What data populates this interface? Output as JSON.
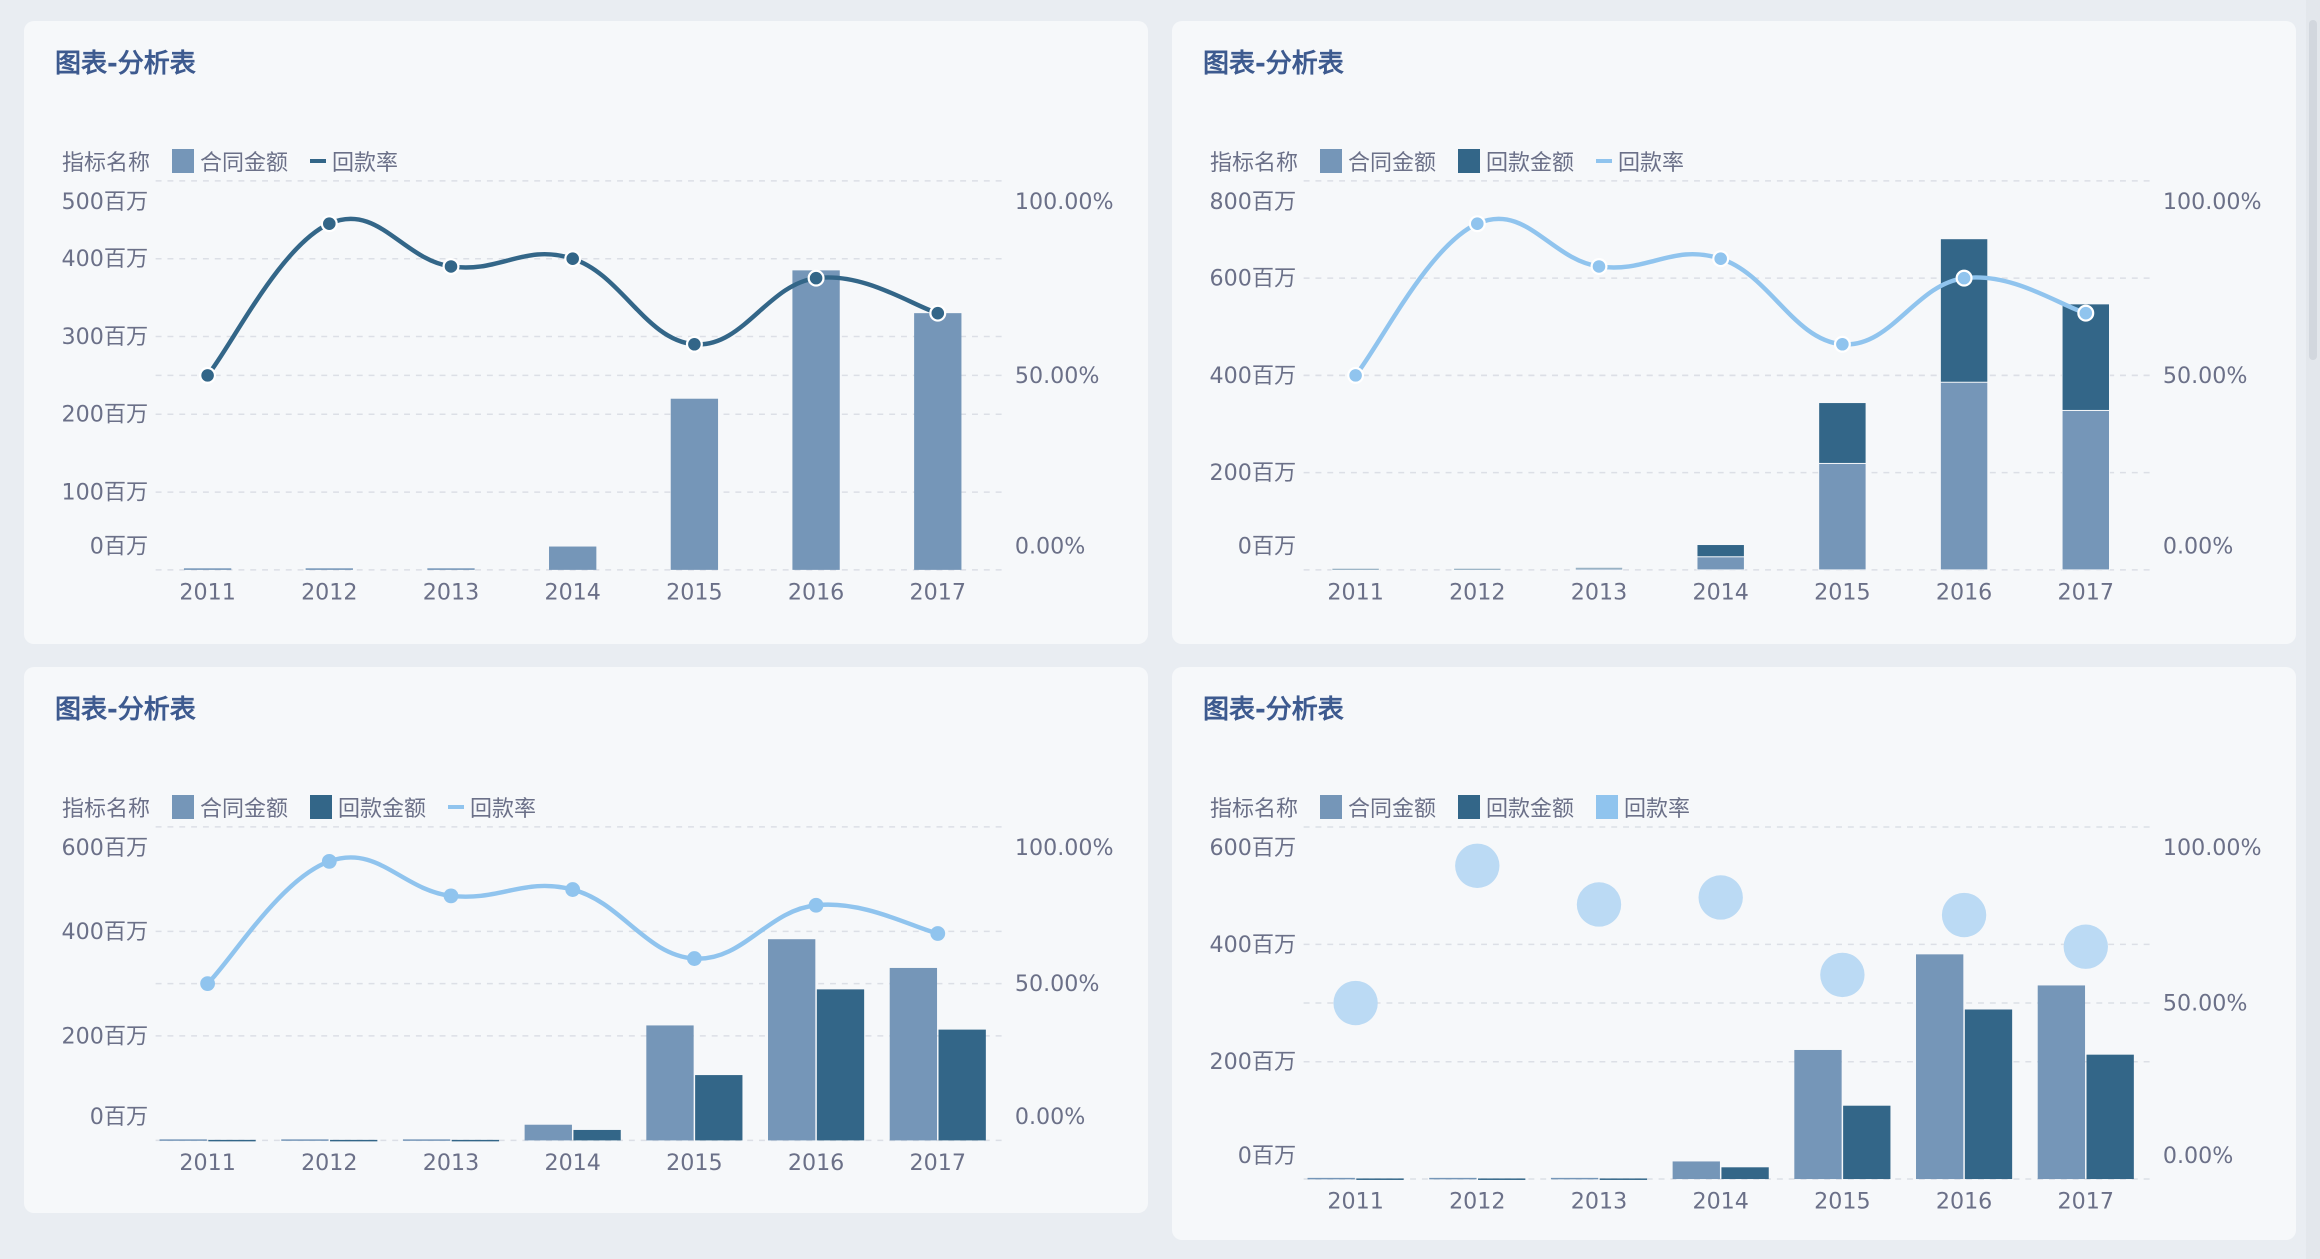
{
  "colors": {
    "contract": "#7596b8",
    "payment": "#336688",
    "rate_light": "#90c4ee",
    "bubble": "#bbdaf4",
    "text": "#6b7088",
    "grid": "#dcdfe6"
  },
  "chart_data": [
    {
      "type": "bar+line",
      "title": "图表-分析表",
      "legend_title": "指标名称",
      "legend": [
        {
          "name": "合同金额",
          "kind": "bar",
          "color": "#7596b8"
        },
        {
          "name": "回款率",
          "kind": "line",
          "color": "#336688"
        }
      ],
      "categories": [
        "2011",
        "2012",
        "2013",
        "2014",
        "2015",
        "2016",
        "2017"
      ],
      "series": [
        {
          "name": "合同金额",
          "type": "bar",
          "values": [
            2,
            2,
            2,
            30,
            220,
            385,
            330
          ]
        },
        {
          "name": "回款率",
          "type": "line",
          "axis": "right",
          "color": "#336688",
          "values": [
            50,
            89,
            78,
            80,
            58,
            75,
            66
          ]
        }
      ],
      "ylim": [
        0,
        500
      ],
      "yticks": [
        "0百万",
        "100百万",
        "200百万",
        "300百万",
        "400百万",
        "500百万"
      ],
      "y2lim": [
        0,
        100
      ],
      "y2ticks": [
        "0.00%",
        "50.00%",
        "100.00%"
      ],
      "mode": "single"
    },
    {
      "type": "stacked-bar+line",
      "title": "图表-分析表",
      "legend_title": "指标名称",
      "legend": [
        {
          "name": "合同金额",
          "kind": "bar",
          "color": "#7596b8"
        },
        {
          "name": "回款金额",
          "kind": "bar",
          "color": "#336688"
        },
        {
          "name": "回款率",
          "kind": "line",
          "color": "#90c4ee"
        }
      ],
      "categories": [
        "2011",
        "2012",
        "2013",
        "2014",
        "2015",
        "2016",
        "2017"
      ],
      "series": [
        {
          "name": "合同金额",
          "type": "bar",
          "values": [
            2,
            2,
            2,
            27,
            219,
            386,
            328
          ]
        },
        {
          "name": "回款金额",
          "type": "bar",
          "values": [
            1,
            1,
            3,
            25,
            125,
            295,
            219
          ]
        },
        {
          "name": "回款率",
          "type": "line",
          "axis": "right",
          "color": "#90c4ee",
          "values": [
            50,
            89,
            78,
            80,
            58,
            75,
            66
          ]
        }
      ],
      "ylim": [
        0,
        800
      ],
      "yticks": [
        "0百万",
        "200百万",
        "400百万",
        "600百万",
        "800百万"
      ],
      "y2lim": [
        0,
        100
      ],
      "y2ticks": [
        "0.00%",
        "50.00%",
        "100.00%"
      ],
      "mode": "stacked"
    },
    {
      "type": "grouped-bar+line",
      "title": "图表-分析表",
      "legend_title": "指标名称",
      "legend": [
        {
          "name": "合同金额",
          "kind": "bar",
          "color": "#7596b8"
        },
        {
          "name": "回款金额",
          "kind": "bar",
          "color": "#336688"
        },
        {
          "name": "回款率",
          "kind": "line",
          "color": "#90c4ee"
        }
      ],
      "categories": [
        "2011",
        "2012",
        "2013",
        "2014",
        "2015",
        "2016",
        "2017"
      ],
      "series": [
        {
          "name": "合同金额",
          "type": "bar",
          "values": [
            2,
            2,
            2,
            30,
            220,
            385,
            330
          ]
        },
        {
          "name": "回款金额",
          "type": "bar",
          "values": [
            1,
            1,
            1,
            20,
            125,
            289,
            212
          ]
        },
        {
          "name": "回款率",
          "type": "line",
          "axis": "right",
          "color": "#90c4ee",
          "values": [
            50,
            89,
            78,
            80,
            58,
            75,
            66
          ]
        }
      ],
      "ylim": [
        0,
        600
      ],
      "yticks": [
        "0百万",
        "200百万",
        "400百万",
        "600百万"
      ],
      "y2lim": [
        0,
        100
      ],
      "y2ticks": [
        "0.00%",
        "50.00%",
        "100.00%"
      ],
      "mode": "grouped"
    },
    {
      "type": "grouped-bar+scatter",
      "title": "图表-分析表",
      "legend_title": "指标名称",
      "legend": [
        {
          "name": "合同金额",
          "kind": "bar",
          "color": "#7596b8"
        },
        {
          "name": "回款金额",
          "kind": "bar",
          "color": "#336688"
        },
        {
          "name": "回款率",
          "kind": "bar",
          "color": "#90c4ee"
        }
      ],
      "categories": [
        "2011",
        "2012",
        "2013",
        "2014",
        "2015",
        "2016",
        "2017"
      ],
      "series": [
        {
          "name": "合同金额",
          "type": "bar",
          "values": [
            2,
            2,
            2,
            30,
            220,
            383,
            330
          ]
        },
        {
          "name": "回款金额",
          "type": "bar",
          "values": [
            1,
            1,
            1,
            20,
            125,
            289,
            212
          ]
        },
        {
          "name": "回款率",
          "type": "scatter",
          "axis": "right",
          "color": "#bbdaf4",
          "values": [
            50,
            89,
            78,
            80,
            58,
            75,
            66
          ]
        }
      ],
      "ylim": [
        0,
        600
      ],
      "yticks": [
        "0百万",
        "200百万",
        "400百万",
        "600百万"
      ],
      "y2lim": [
        0,
        100
      ],
      "y2ticks": [
        "0.00%",
        "50.00%",
        "100.00%"
      ],
      "mode": "grouped"
    }
  ]
}
